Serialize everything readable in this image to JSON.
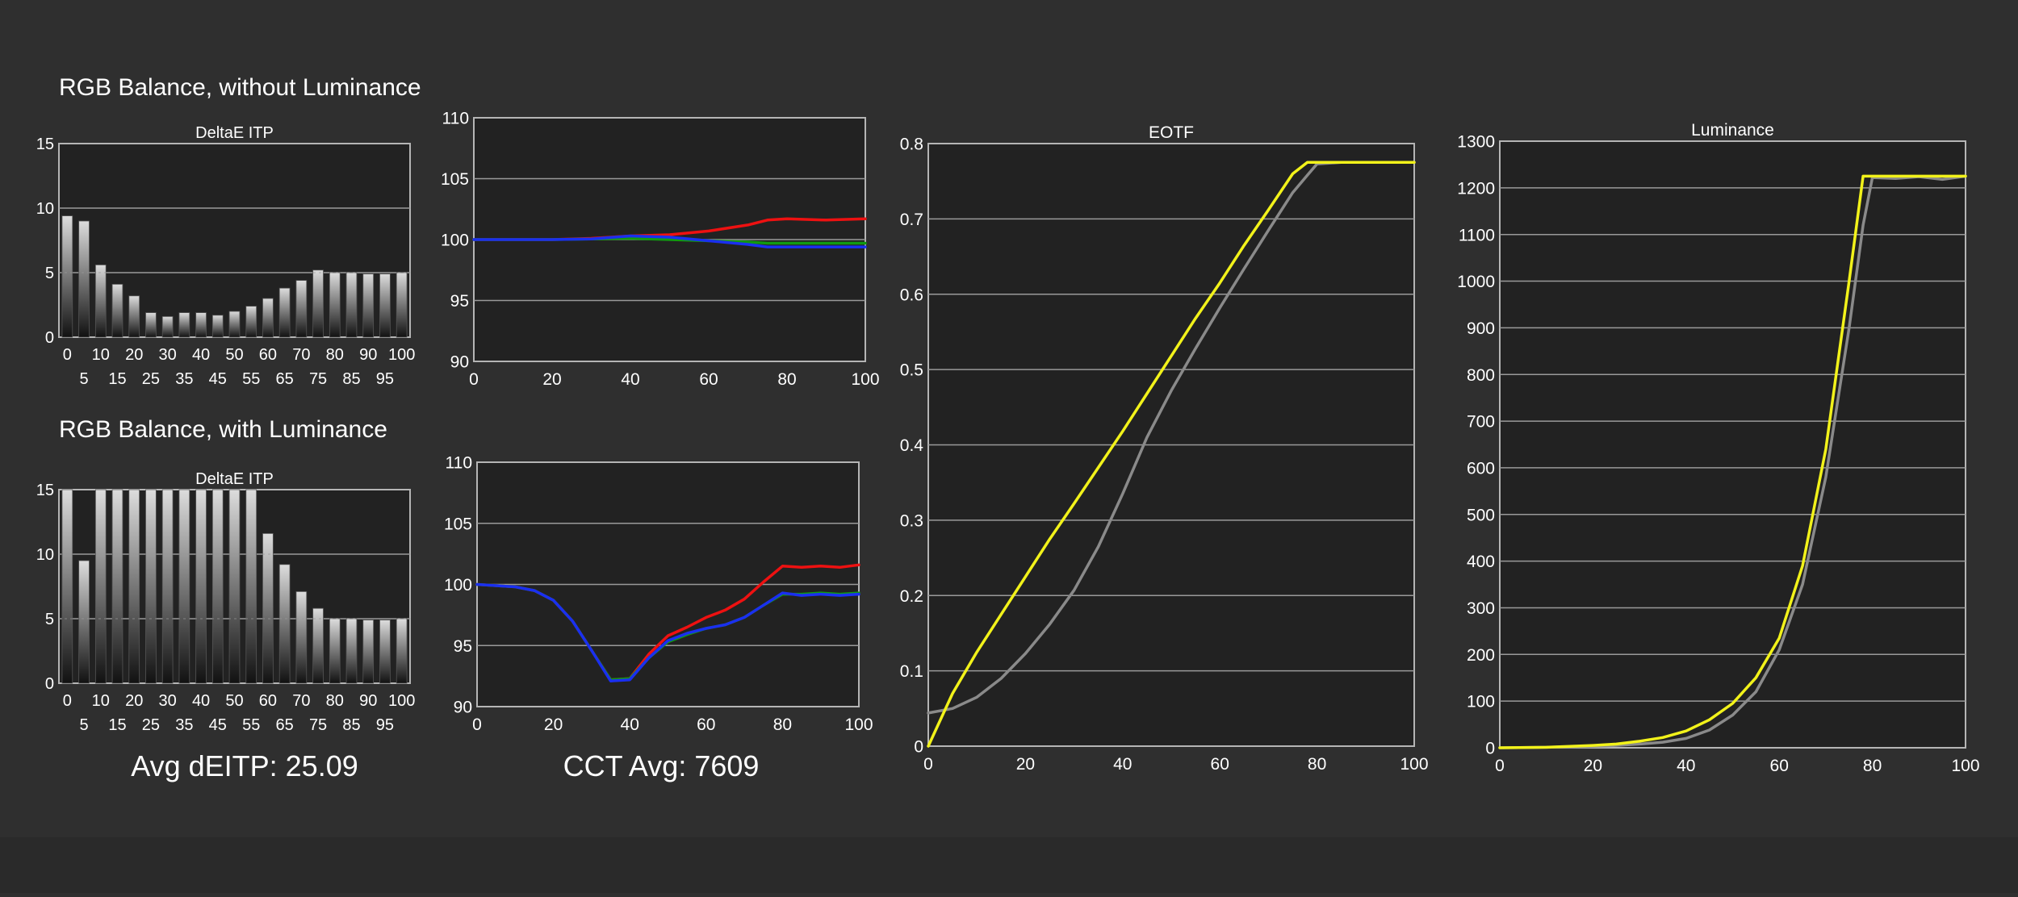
{
  "colors": {
    "background": "#2f2f2f",
    "plot_bg": "#222222",
    "grid": "#9a9a9a",
    "text": "#ffffff",
    "red": "#ee1111",
    "green": "#119911",
    "blue": "#1a2ff0",
    "yellow": "#f2f21a",
    "gray": "#8a8a8a"
  },
  "labels": {
    "section_without": "RGB Balance, without Luminance",
    "section_with": "RGB Balance, with Luminance",
    "avg_deitp": "Avg dEITP: 25.09",
    "cct_avg": "CCT Avg: 7609"
  },
  "chart_data": [
    {
      "id": "deltae-without",
      "type": "bar",
      "title": "DeltaE ITP",
      "xlabel": "",
      "ylabel": "",
      "ylim": [
        0,
        15
      ],
      "yticks": [
        0,
        5,
        10,
        15
      ],
      "grid": true,
      "categories": [
        "0",
        "5",
        "10",
        "15",
        "20",
        "25",
        "30",
        "35",
        "40",
        "45",
        "50",
        "55",
        "60",
        "65",
        "70",
        "75",
        "80",
        "85",
        "90",
        "95",
        "100"
      ],
      "values": [
        9.4,
        9.0,
        5.6,
        4.1,
        3.2,
        1.9,
        1.6,
        1.9,
        1.9,
        1.7,
        2.0,
        2.4,
        3.0,
        3.8,
        4.4,
        5.2,
        5.0,
        5.0,
        4.9,
        4.9,
        5.0
      ]
    },
    {
      "id": "deltae-with",
      "type": "bar",
      "title": "DeltaE ITP",
      "xlabel": "",
      "ylabel": "",
      "ylim": [
        0,
        15
      ],
      "yticks": [
        0,
        5,
        10,
        15
      ],
      "grid": true,
      "categories": [
        "0",
        "5",
        "10",
        "15",
        "20",
        "25",
        "30",
        "35",
        "40",
        "45",
        "50",
        "55",
        "60",
        "65",
        "70",
        "75",
        "80",
        "85",
        "90",
        "95",
        "100"
      ],
      "values": [
        15,
        9.5,
        15,
        15,
        15,
        15,
        15,
        15,
        15,
        15,
        15,
        15,
        11.6,
        9.2,
        7.1,
        5.8,
        5.0,
        5.0,
        4.9,
        4.9,
        5.0
      ]
    },
    {
      "id": "rgb-without",
      "type": "line",
      "title": "",
      "xlabel": "",
      "ylabel": "",
      "xlim": [
        0,
        100
      ],
      "ylim": [
        90,
        110
      ],
      "xticks": [
        0,
        20,
        40,
        60,
        80,
        100
      ],
      "yticks": [
        90,
        95,
        100,
        105,
        110
      ],
      "grid": true,
      "x": [
        0,
        10,
        20,
        30,
        40,
        50,
        60,
        70,
        75,
        80,
        90,
        100
      ],
      "series": [
        {
          "color": "red",
          "values": [
            100,
            100,
            100,
            100.1,
            100.3,
            100.4,
            100.7,
            101.2,
            101.6,
            101.7,
            101.6,
            101.7
          ]
        },
        {
          "color": "green",
          "values": [
            100,
            100,
            100,
            100.05,
            100.1,
            100.0,
            99.9,
            99.8,
            99.7,
            99.7,
            99.7,
            99.7
          ]
        },
        {
          "color": "blue",
          "values": [
            100,
            100,
            100,
            100.05,
            100.3,
            100.2,
            99.9,
            99.6,
            99.4,
            99.4,
            99.4,
            99.4
          ]
        }
      ]
    },
    {
      "id": "rgb-with",
      "type": "line",
      "title": "",
      "xlabel": "",
      "ylabel": "",
      "xlim": [
        0,
        100
      ],
      "ylim": [
        90,
        110
      ],
      "xticks": [
        0,
        20,
        40,
        60,
        80,
        100
      ],
      "yticks": [
        90,
        95,
        100,
        105,
        110
      ],
      "grid": true,
      "x": [
        0,
        5,
        10,
        15,
        20,
        25,
        30,
        35,
        40,
        45,
        50,
        55,
        60,
        65,
        70,
        75,
        80,
        85,
        90,
        95,
        100
      ],
      "series": [
        {
          "color": "red",
          "values": [
            100,
            99.9,
            99.8,
            99.5,
            98.7,
            97.0,
            94.6,
            92.2,
            92.3,
            94.3,
            95.8,
            96.5,
            97.3,
            97.9,
            98.8,
            100.2,
            101.5,
            101.4,
            101.5,
            101.4,
            101.6
          ]
        },
        {
          "color": "green",
          "values": [
            100,
            99.9,
            99.8,
            99.5,
            98.7,
            97.0,
            94.6,
            92.2,
            92.3,
            94.0,
            95.3,
            95.9,
            96.4,
            96.7,
            97.3,
            98.3,
            99.2,
            99.2,
            99.3,
            99.2,
            99.3
          ]
        },
        {
          "color": "blue",
          "values": [
            100,
            99.9,
            99.8,
            99.5,
            98.7,
            97.0,
            94.6,
            92.1,
            92.2,
            94.0,
            95.4,
            96.0,
            96.4,
            96.7,
            97.3,
            98.3,
            99.3,
            99.1,
            99.2,
            99.1,
            99.2
          ]
        }
      ]
    },
    {
      "id": "eotf",
      "type": "line",
      "title": "EOTF",
      "xlabel": "",
      "ylabel": "",
      "xlim": [
        0,
        100
      ],
      "ylim": [
        0,
        0.8
      ],
      "xticks": [
        0,
        20,
        40,
        60,
        80,
        100
      ],
      "yticks": [
        0,
        0.1,
        0.2,
        0.3,
        0.4,
        0.5,
        0.6,
        0.7,
        0.8
      ],
      "grid": true,
      "x": [
        0,
        5,
        10,
        15,
        20,
        25,
        30,
        35,
        40,
        45,
        50,
        55,
        60,
        65,
        70,
        75,
        78,
        80,
        85,
        90,
        95,
        100
      ],
      "series": [
        {
          "color": "gray",
          "values": [
            0.044,
            0.05,
            0.065,
            0.09,
            0.123,
            0.162,
            0.207,
            0.265,
            0.335,
            0.41,
            0.472,
            0.528,
            0.582,
            0.634,
            0.685,
            0.735,
            0.758,
            0.773,
            0.775,
            0.775,
            0.775,
            0.775
          ]
        },
        {
          "color": "yellow",
          "values": [
            0.0,
            0.07,
            0.125,
            0.175,
            0.225,
            0.275,
            0.322,
            0.37,
            0.418,
            0.468,
            0.518,
            0.568,
            0.615,
            0.665,
            0.712,
            0.76,
            0.775,
            0.775,
            0.775,
            0.775,
            0.775,
            0.775
          ]
        }
      ]
    },
    {
      "id": "luminance",
      "type": "line",
      "title": "Luminance",
      "xlabel": "",
      "ylabel": "",
      "xlim": [
        0,
        100
      ],
      "ylim": [
        0,
        1300
      ],
      "xticks": [
        0,
        20,
        40,
        60,
        80,
        100
      ],
      "yticks": [
        0,
        100,
        200,
        300,
        400,
        500,
        600,
        700,
        800,
        900,
        1000,
        1100,
        1200,
        1300
      ],
      "grid": true,
      "x": [
        0,
        10,
        20,
        25,
        30,
        35,
        40,
        45,
        50,
        55,
        60,
        65,
        70,
        75,
        78,
        80,
        85,
        90,
        95,
        100
      ],
      "series": [
        {
          "color": "gray",
          "values": [
            0,
            1,
            3,
            5,
            8,
            12,
            20,
            38,
            70,
            120,
            210,
            350,
            580,
            900,
            1120,
            1222,
            1220,
            1224,
            1218,
            1225
          ]
        },
        {
          "color": "yellow",
          "values": [
            0,
            1,
            5,
            8,
            14,
            22,
            36,
            60,
            95,
            150,
            235,
            390,
            640,
            1000,
            1225,
            1225,
            1225,
            1225,
            1225,
            1225
          ]
        }
      ]
    }
  ]
}
